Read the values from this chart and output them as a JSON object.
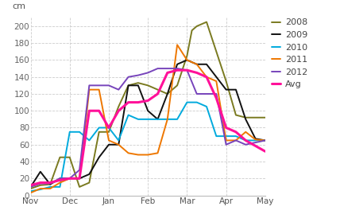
{
  "title": "cm",
  "background": "#ffffff",
  "grid_color": "#cccccc",
  "ylim": [
    0,
    210
  ],
  "yticks": [
    0,
    20,
    40,
    60,
    80,
    100,
    120,
    140,
    160,
    180,
    200
  ],
  "xtick_labels": [
    "Nov",
    "Dec",
    "Jan",
    "Feb",
    "Mar",
    "Apr",
    "May"
  ],
  "series": {
    "2008": {
      "color": "#7a7a20",
      "lw": 1.4,
      "x": [
        0,
        1,
        2,
        3,
        4,
        5,
        6,
        7,
        8,
        9,
        10,
        11,
        12,
        13,
        14,
        15,
        16,
        16.5,
        17,
        18,
        19,
        20,
        21,
        22,
        24
      ],
      "y": [
        8,
        12,
        13,
        45,
        45,
        10,
        15,
        75,
        75,
        105,
        130,
        133,
        130,
        125,
        120,
        130,
        165,
        195,
        200,
        205,
        170,
        135,
        95,
        92,
        92
      ]
    },
    "2009": {
      "color": "#111111",
      "lw": 1.4,
      "x": [
        0,
        1,
        2,
        3,
        4,
        5,
        6,
        7,
        8,
        9,
        10,
        11,
        12,
        13,
        14,
        15,
        16,
        17,
        18,
        19,
        20,
        21,
        22,
        23,
        24
      ],
      "y": [
        10,
        28,
        13,
        20,
        20,
        20,
        25,
        45,
        60,
        60,
        130,
        130,
        100,
        90,
        120,
        155,
        160,
        155,
        155,
        140,
        125,
        125,
        90,
        67,
        65
      ]
    },
    "2010": {
      "color": "#00aadd",
      "lw": 1.4,
      "x": [
        0,
        1,
        2,
        3,
        4,
        5,
        6,
        7,
        8,
        9,
        10,
        11,
        12,
        13,
        14,
        15,
        16,
        17,
        18,
        19,
        20,
        21,
        22,
        24
      ],
      "y": [
        5,
        7,
        10,
        10,
        75,
        75,
        65,
        80,
        80,
        65,
        95,
        90,
        90,
        90,
        90,
        90,
        110,
        110,
        105,
        70,
        70,
        70,
        65,
        65
      ]
    },
    "2011": {
      "color": "#ee7700",
      "lw": 1.4,
      "x": [
        0,
        1,
        2,
        3,
        4,
        5,
        6,
        7,
        8,
        9,
        10,
        11,
        12,
        13,
        14,
        15,
        16,
        17,
        18,
        19,
        20,
        21,
        22,
        23,
        24
      ],
      "y": [
        3,
        8,
        8,
        15,
        20,
        20,
        125,
        125,
        65,
        60,
        50,
        48,
        48,
        50,
        90,
        178,
        160,
        155,
        140,
        135,
        65,
        65,
        75,
        66,
        65
      ]
    },
    "2012": {
      "color": "#7744bb",
      "lw": 1.4,
      "x": [
        0,
        1,
        2,
        3,
        4,
        5,
        6,
        7,
        8,
        9,
        10,
        11,
        12,
        13,
        14,
        15,
        16,
        17,
        18,
        19,
        20,
        21,
        22,
        24
      ],
      "y": [
        10,
        14,
        14,
        20,
        20,
        30,
        130,
        130,
        130,
        125,
        140,
        142,
        145,
        150,
        150,
        150,
        148,
        120,
        120,
        120,
        60,
        65,
        60,
        65
      ]
    },
    "Avg": {
      "color": "#ff1199",
      "lw": 2.2,
      "x": [
        0,
        1,
        2,
        3,
        4,
        5,
        6,
        7,
        8,
        9,
        10,
        11,
        12,
        13,
        14,
        15,
        16,
        17,
        18,
        19,
        20,
        21,
        22,
        24
      ],
      "y": [
        12,
        15,
        15,
        18,
        20,
        20,
        100,
        100,
        80,
        100,
        110,
        110,
        112,
        120,
        145,
        148,
        148,
        145,
        140,
        115,
        80,
        75,
        65,
        52
      ]
    }
  },
  "legend_order": [
    "2008",
    "2009",
    "2010",
    "2011",
    "2012",
    "Avg"
  ]
}
